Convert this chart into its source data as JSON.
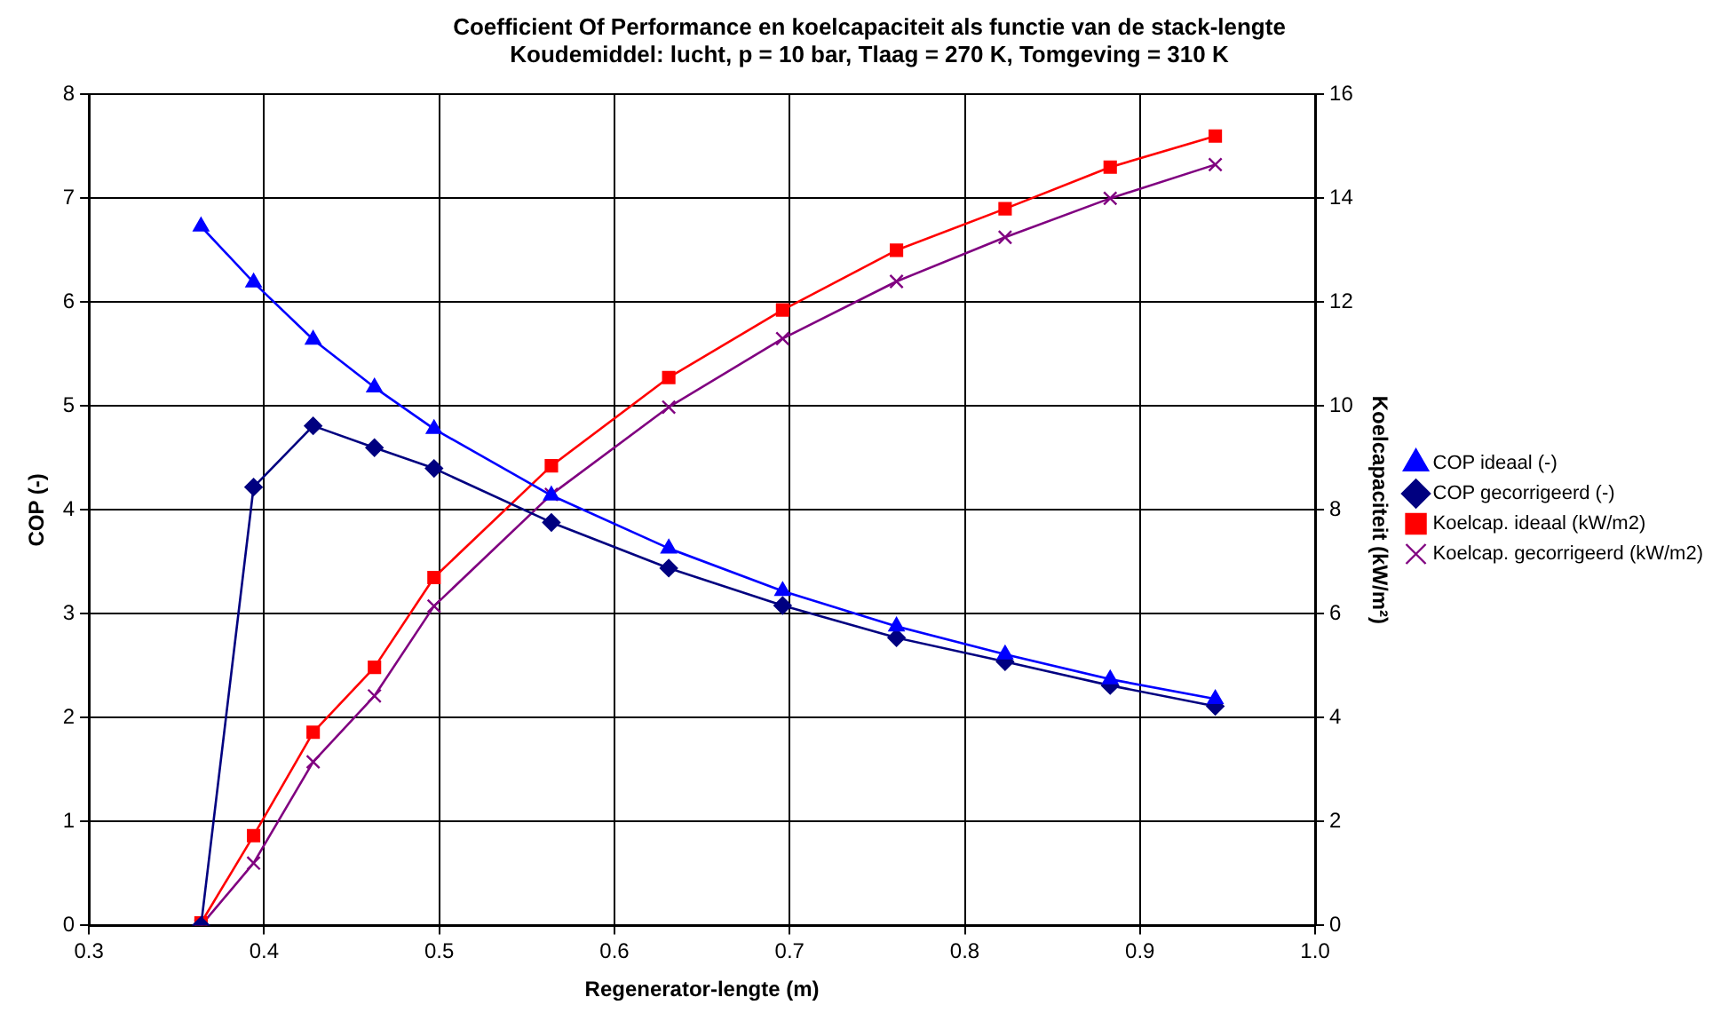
{
  "chart_data": {
    "type": "line",
    "title": "Coefficient Of Performance en koelcapaciteit als functie van de stack-lengte",
    "subtitle": "Koudemiddel: lucht, p = 10 bar, Tlaag = 270 K, Tomgeving = 310 K",
    "xlabel": "Regenerator-lengte (m)",
    "ylabel": "COP (-)",
    "y2label": "Koelcapaciteit (kW/m²)",
    "x": [
      0.364,
      0.394,
      0.428,
      0.463,
      0.497,
      0.564,
      0.631,
      0.696,
      0.761,
      0.823,
      0.883,
      0.943
    ],
    "series": [
      {
        "name": "COP ideaal (-)",
        "color": "#0000ff",
        "marker": "triangle",
        "values": [
          6.73,
          6.19,
          5.64,
          5.18,
          4.78,
          4.14,
          3.63,
          3.22,
          2.88,
          2.61,
          2.37,
          2.18
        ]
      },
      {
        "name": "COP gecorrigeerd (-)",
        "color": "#000080",
        "marker": "diamond",
        "values": [
          0,
          4.22,
          4.81,
          4.6,
          4.4,
          3.88,
          3.44,
          3.08,
          2.77,
          2.54,
          2.31,
          2.11
        ]
      },
      {
        "name": "Koelcap. ideaal (kW/m2)",
        "color": "#ff0000",
        "marker": "square",
        "axis": "y2",
        "values": [
          0.05,
          1.73,
          3.72,
          4.97,
          6.7,
          8.85,
          10.55,
          11.85,
          13.0,
          13.8,
          14.6,
          15.2
        ]
      },
      {
        "name": "Koelcap. gecorrigeerd (kW/m2)",
        "color": "#800080",
        "marker": "cross",
        "axis": "y2",
        "values": [
          0,
          1.2,
          3.15,
          4.42,
          6.15,
          8.3,
          9.98,
          11.3,
          12.4,
          13.25,
          14.0,
          14.65
        ]
      }
    ],
    "xlim": [
      0.3,
      1.0
    ],
    "xticks": [
      {
        "value": 0.3,
        "label": "0.3"
      },
      {
        "value": 0.4,
        "label": "0.4"
      },
      {
        "value": 0.5,
        "label": "0.5"
      },
      {
        "value": 0.6,
        "label": "0.6"
      },
      {
        "value": 0.7,
        "label": "0.7"
      },
      {
        "value": 0.8,
        "label": "0.8"
      },
      {
        "value": 0.9,
        "label": "0.9"
      },
      {
        "value": 1.0,
        "label": "1.0"
      }
    ],
    "ylim": [
      0,
      8
    ],
    "yticks": [
      0,
      1,
      2,
      3,
      4,
      5,
      6,
      7,
      8
    ],
    "y2lim": [
      0,
      16
    ],
    "y2ticks": [
      0,
      2,
      4,
      6,
      8,
      10,
      12,
      14,
      16
    ],
    "grid": true,
    "legend": "right",
    "line_style": "solid"
  }
}
